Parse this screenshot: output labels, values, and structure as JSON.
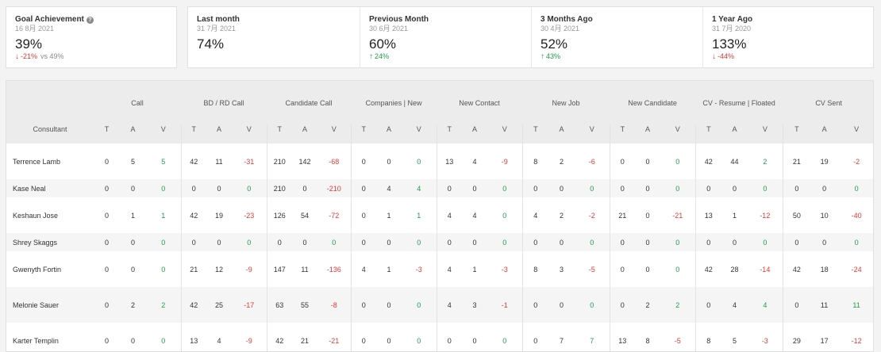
{
  "goal": {
    "title": "Goal Achievement",
    "date": "16 8月 2021",
    "value": "39%",
    "delta": "-21%",
    "delta_dir": "neg",
    "vs_text": "vs 49%"
  },
  "periods": [
    {
      "title": "Last month",
      "date": "31 7月 2021",
      "value": "74%",
      "delta": "",
      "delta_dir": ""
    },
    {
      "title": "Previous Month",
      "date": "30 6月 2021",
      "value": "60%",
      "delta": "24%",
      "delta_dir": "pos"
    },
    {
      "title": "3 Months Ago",
      "date": "30 4月 2021",
      "value": "52%",
      "delta": "43%",
      "delta_dir": "pos"
    },
    {
      "title": "1 Year Ago",
      "date": "31 7月 2020",
      "value": "133%",
      "delta": "-44%",
      "delta_dir": "neg"
    }
  ],
  "table": {
    "name_header": "Consultant",
    "sub_headers": [
      "T",
      "A",
      "V"
    ],
    "groups": [
      "Call",
      "BD / RD Call",
      "Candidate Call",
      "Companies | New",
      "New Contact",
      "New Job",
      "New Candidate",
      "CV - Resume | Floated",
      "CV Sent"
    ],
    "rows": [
      {
        "name": "Terrence Lamb",
        "size": "tall",
        "values": [
          [
            0,
            5,
            5
          ],
          [
            42,
            11,
            -31
          ],
          [
            210,
            142,
            -68
          ],
          [
            0,
            0,
            0
          ],
          [
            13,
            4,
            -9
          ],
          [
            8,
            2,
            -6
          ],
          [
            0,
            0,
            0
          ],
          [
            42,
            44,
            2
          ],
          [
            21,
            19,
            -2
          ]
        ]
      },
      {
        "name": "Kase Neal",
        "size": "short",
        "values": [
          [
            0,
            0,
            0
          ],
          [
            0,
            0,
            0
          ],
          [
            210,
            0,
            -210
          ],
          [
            0,
            4,
            4
          ],
          [
            0,
            0,
            0
          ],
          [
            0,
            0,
            0
          ],
          [
            0,
            0,
            0
          ],
          [
            0,
            0,
            0
          ],
          [
            0,
            0,
            0
          ]
        ]
      },
      {
        "name": "Keshaun Jose",
        "size": "tall",
        "values": [
          [
            0,
            1,
            1
          ],
          [
            42,
            19,
            -23
          ],
          [
            126,
            54,
            -72
          ],
          [
            0,
            1,
            1
          ],
          [
            4,
            4,
            0
          ],
          [
            4,
            2,
            -2
          ],
          [
            21,
            0,
            -21
          ],
          [
            13,
            1,
            -12
          ],
          [
            50,
            10,
            -40
          ]
        ]
      },
      {
        "name": "Shrey Skaggs",
        "size": "short",
        "values": [
          [
            0,
            0,
            0
          ],
          [
            0,
            0,
            0
          ],
          [
            0,
            0,
            0
          ],
          [
            0,
            0,
            0
          ],
          [
            0,
            0,
            0
          ],
          [
            0,
            0,
            0
          ],
          [
            0,
            0,
            0
          ],
          [
            0,
            0,
            0
          ],
          [
            0,
            0,
            0
          ]
        ]
      },
      {
        "name": "Gwenyth Fortin",
        "size": "tall",
        "values": [
          [
            0,
            0,
            0
          ],
          [
            21,
            12,
            -9
          ],
          [
            147,
            11,
            -136
          ],
          [
            4,
            1,
            -3
          ],
          [
            4,
            1,
            -3
          ],
          [
            8,
            3,
            -5
          ],
          [
            0,
            0,
            0
          ],
          [
            42,
            28,
            -14
          ],
          [
            42,
            18,
            -24
          ]
        ]
      },
      {
        "name": "Melonie Sauer",
        "size": "tall",
        "values": [
          [
            0,
            2,
            2
          ],
          [
            42,
            25,
            -17
          ],
          [
            63,
            55,
            -8
          ],
          [
            0,
            0,
            0
          ],
          [
            4,
            3,
            -1
          ],
          [
            0,
            0,
            0
          ],
          [
            0,
            2,
            2
          ],
          [
            0,
            4,
            4
          ],
          [
            0,
            11,
            11
          ]
        ]
      },
      {
        "name": "Karter Templin",
        "size": "tall",
        "values": [
          [
            0,
            0,
            0
          ],
          [
            13,
            4,
            -9
          ],
          [
            42,
            21,
            -21
          ],
          [
            0,
            0,
            0
          ],
          [
            0,
            0,
            0
          ],
          [
            0,
            7,
            7
          ],
          [
            13,
            8,
            -5
          ],
          [
            8,
            5,
            -3
          ],
          [
            29,
            17,
            -12
          ]
        ]
      }
    ]
  },
  "colors": {
    "positive": "#1e9e4a",
    "negative": "#e53935"
  }
}
